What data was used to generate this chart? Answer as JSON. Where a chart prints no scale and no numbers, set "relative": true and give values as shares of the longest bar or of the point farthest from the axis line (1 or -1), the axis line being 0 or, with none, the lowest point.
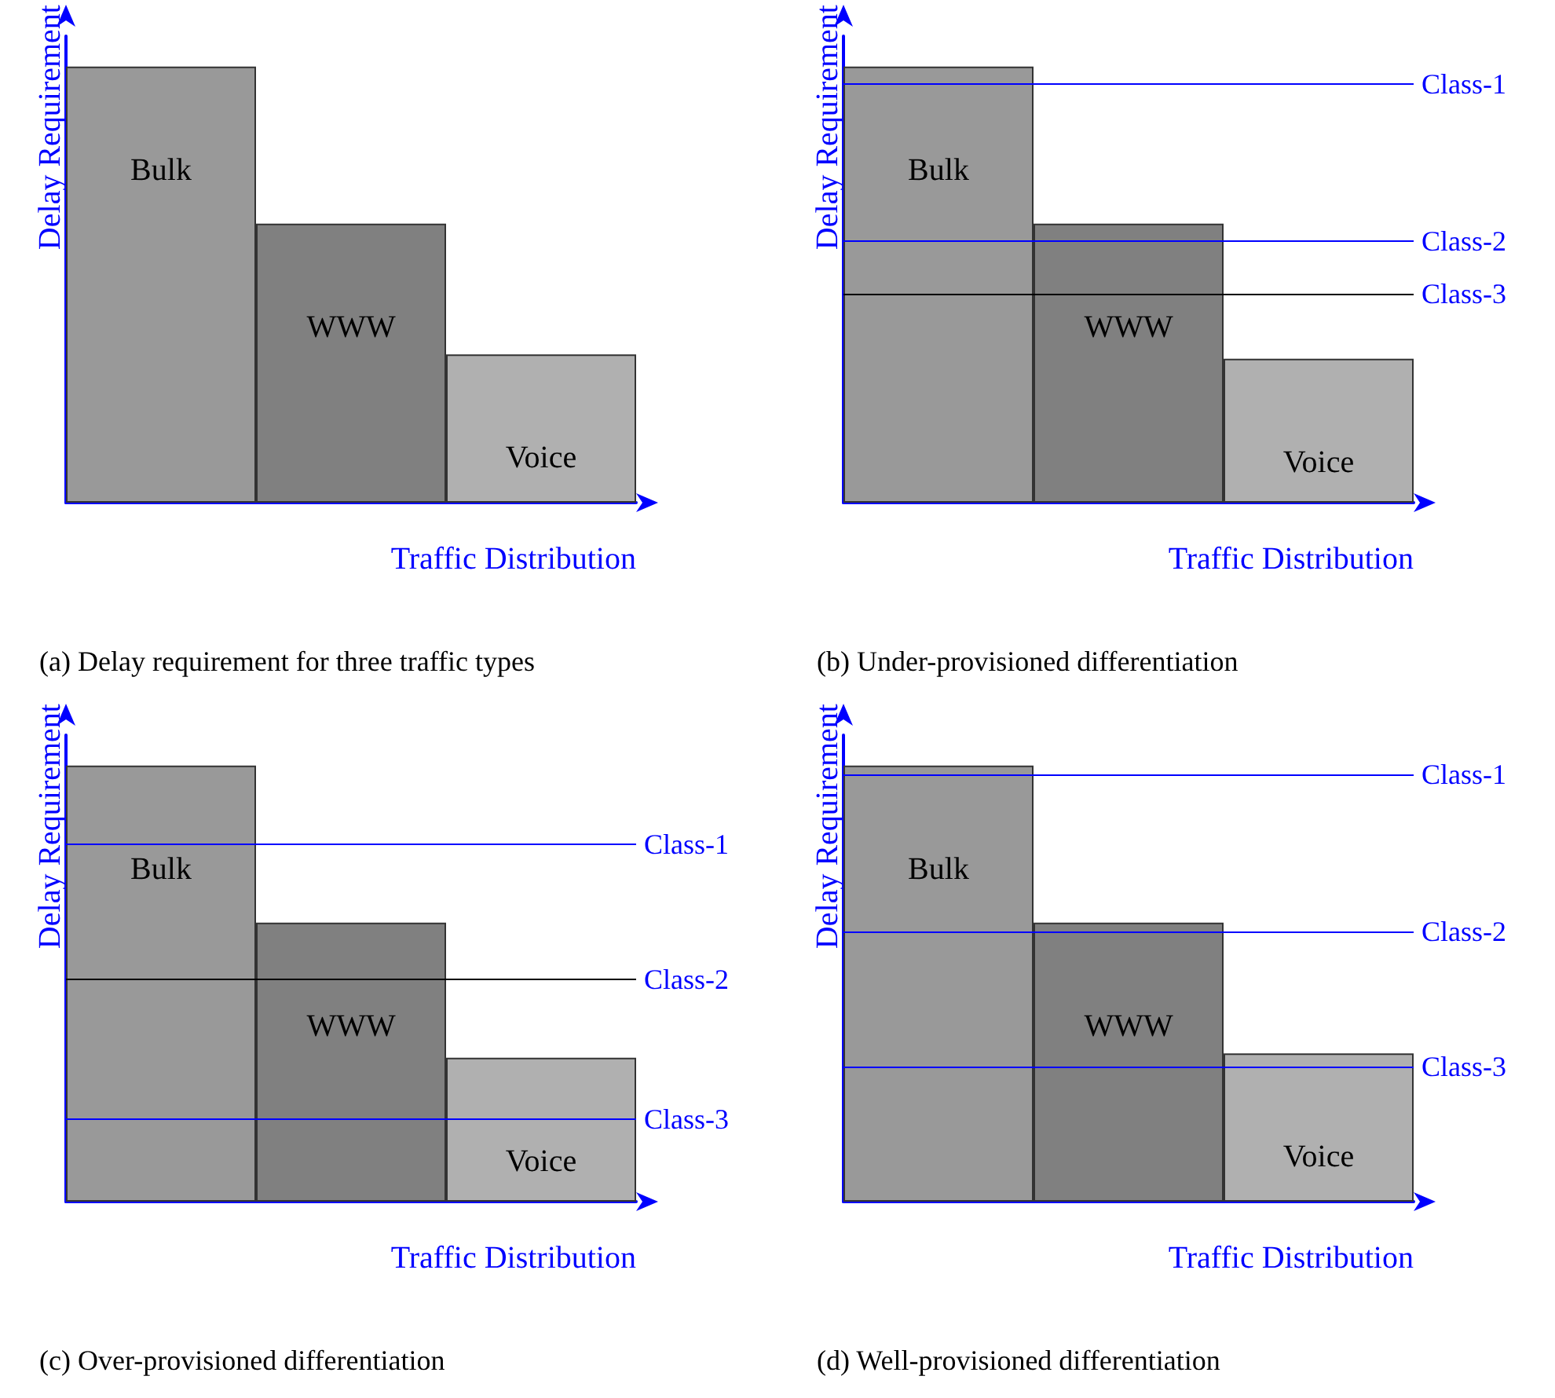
{
  "chart_data": [
    {
      "type": "bar",
      "title": "(a) Delay requirement for three traffic types",
      "xlabel": "Traffic Distribution",
      "ylabel": "Delay Requirement",
      "relative": true,
      "categories": [
        "Bulk",
        "WWW",
        "Voice"
      ],
      "values": [
        1,
        0.64,
        0.34
      ],
      "colors": [
        "#999999",
        "#808080",
        "#b0b0b0"
      ],
      "grid": false
    },
    {
      "type": "bar",
      "title": "(b) Under-provisioned differentiation",
      "xlabel": "Traffic Distribution",
      "ylabel": "Delay Requirement",
      "relative": true,
      "categories": [
        "Bulk",
        "WWW",
        "Voice"
      ],
      "values": [
        1,
        0.64,
        0.33
      ],
      "colors": [
        "#999999",
        "#808080",
        "#b0b0b0"
      ],
      "grid": false,
      "ref_lines": [
        {
          "axis": "y",
          "value": 0.96,
          "label": "Class-1",
          "color": "#0000ff"
        },
        {
          "axis": "y",
          "value": 0.6,
          "label": "Class-2",
          "color": "#0000ff"
        },
        {
          "axis": "y",
          "value": 0.48,
          "label": "Class-3",
          "color": "#000000"
        }
      ]
    },
    {
      "type": "bar",
      "title": "(c) Over-provisioned differentiation",
      "xlabel": "Traffic Distribution",
      "ylabel": "Delay Requirement",
      "relative": true,
      "categories": [
        "Bulk",
        "WWW",
        "Voice"
      ],
      "values": [
        1,
        0.64,
        0.33
      ],
      "colors": [
        "#999999",
        "#808080",
        "#b0b0b0"
      ],
      "grid": false,
      "ref_lines": [
        {
          "axis": "y",
          "value": 0.82,
          "label": "Class-1",
          "color": "#0000ff"
        },
        {
          "axis": "y",
          "value": 0.51,
          "label": "Class-2",
          "color": "#000000"
        },
        {
          "axis": "y",
          "value": 0.19,
          "label": "Class-3",
          "color": "#0000ff"
        }
      ]
    },
    {
      "type": "bar",
      "title": "(d) Well-provisioned differentiation",
      "xlabel": "Traffic Distribution",
      "ylabel": "Delay Requirement",
      "relative": true,
      "categories": [
        "Bulk",
        "WWW",
        "Voice"
      ],
      "values": [
        1,
        0.64,
        0.34
      ],
      "colors": [
        "#999999",
        "#808080",
        "#b0b0b0"
      ],
      "grid": false,
      "ref_lines": [
        {
          "axis": "y",
          "value": 0.98,
          "label": "Class-1",
          "color": "#0000ff"
        },
        {
          "axis": "y",
          "value": 0.62,
          "label": "Class-2",
          "color": "#0000ff"
        },
        {
          "axis": "y",
          "value": 0.31,
          "label": "Class-3",
          "color": "#0000ff"
        }
      ]
    }
  ]
}
